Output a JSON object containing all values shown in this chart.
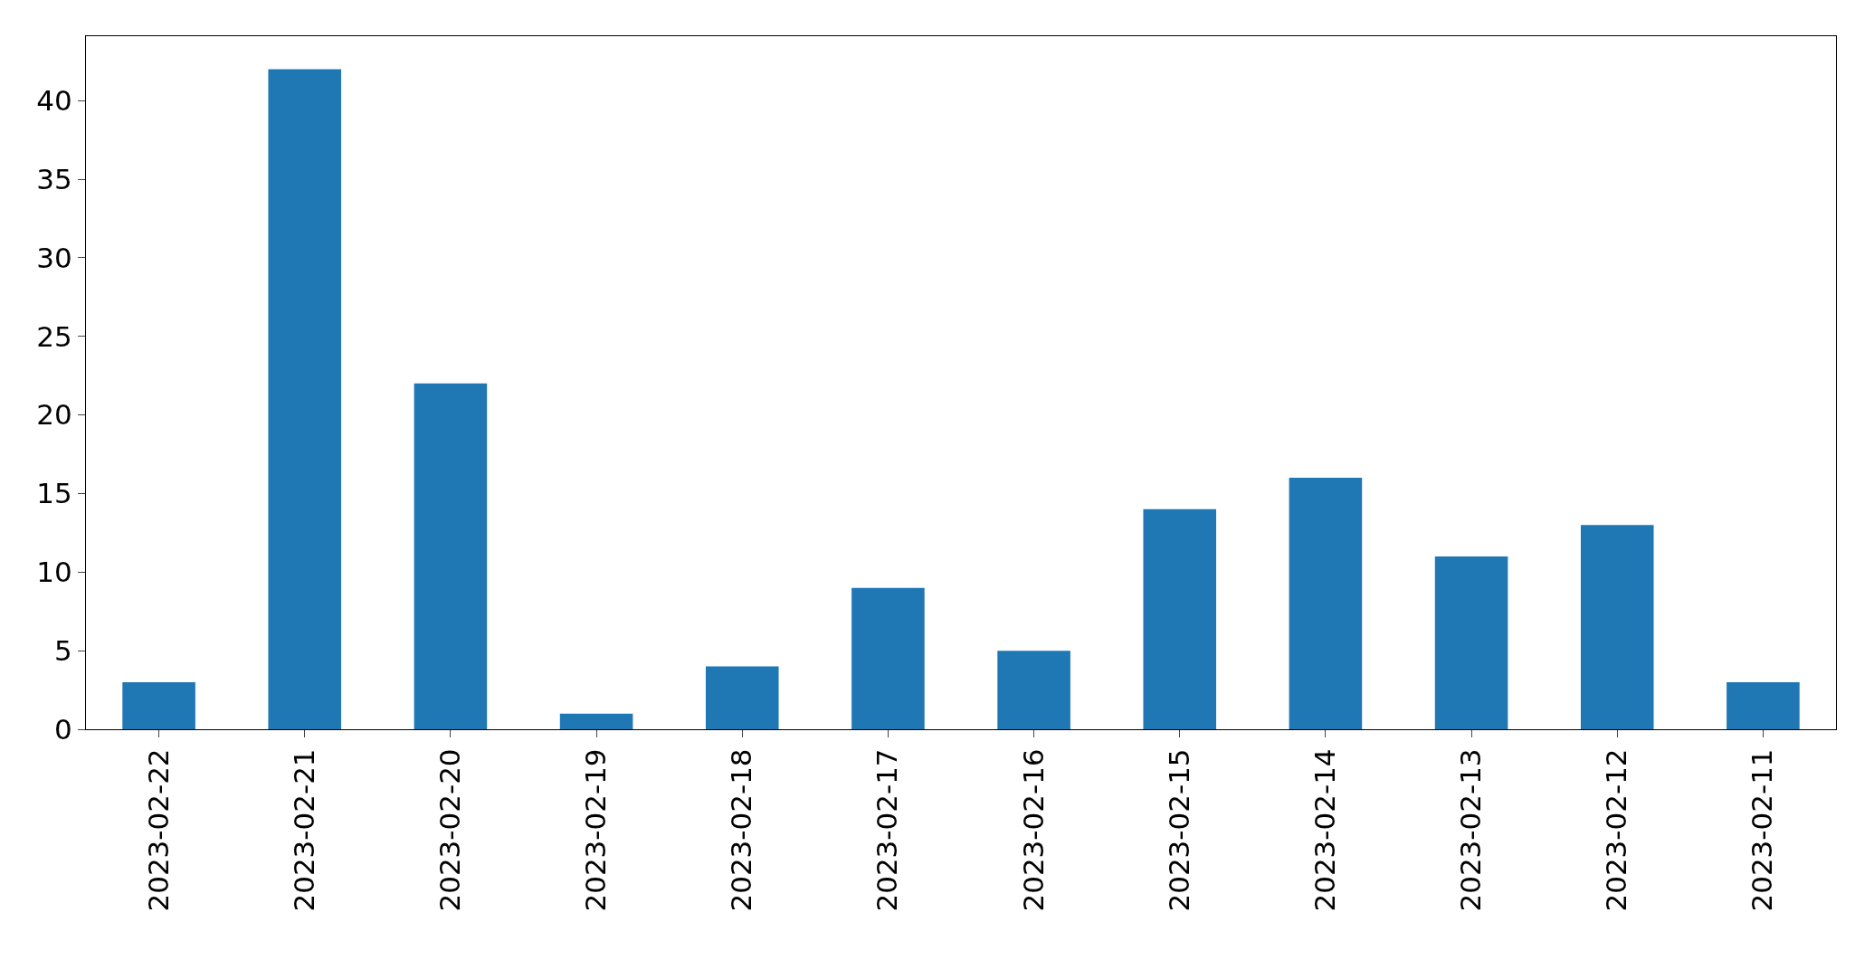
{
  "chart_data": {
    "type": "bar",
    "categories": [
      "2023-02-22",
      "2023-02-21",
      "2023-02-20",
      "2023-02-19",
      "2023-02-18",
      "2023-02-17",
      "2023-02-16",
      "2023-02-15",
      "2023-02-14",
      "2023-02-13",
      "2023-02-12",
      "2023-02-11"
    ],
    "values": [
      3,
      42,
      22,
      1,
      4,
      9,
      5,
      14,
      16,
      11,
      13,
      3
    ],
    "color": "#1f77b4",
    "ylim": [
      0,
      44.1
    ],
    "yticks": [
      0,
      5,
      10,
      15,
      20,
      25,
      30,
      35,
      40
    ]
  }
}
